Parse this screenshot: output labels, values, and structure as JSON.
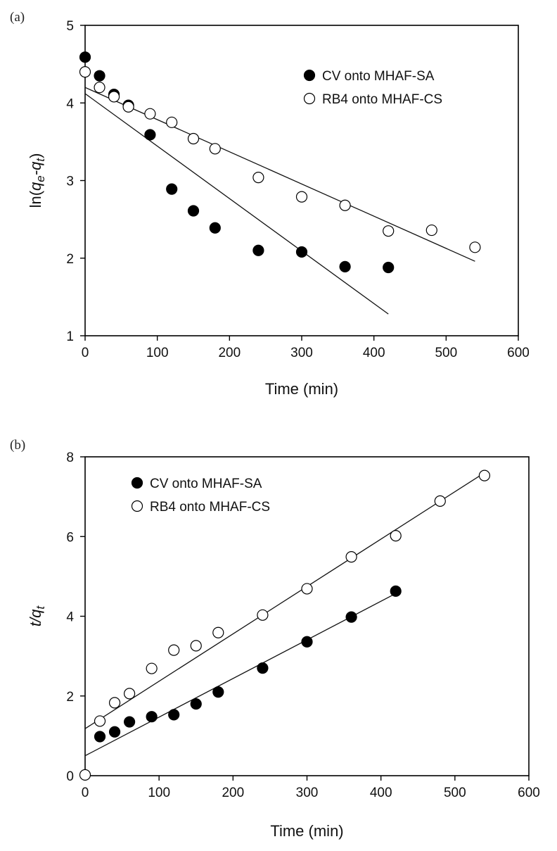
{
  "figure": {
    "panel_a_label": "(a)",
    "panel_b_label": "(b)"
  },
  "chart_data": [
    {
      "type": "scatter",
      "panel": "(a)",
      "xlabel": "Time (min)",
      "ylabel_parts": [
        "ln(",
        "q",
        "e",
        "-",
        "q",
        "t",
        ")"
      ],
      "xlim": [
        0,
        600
      ],
      "ylim": [
        1,
        5
      ],
      "xticks": [
        0,
        100,
        200,
        300,
        400,
        500,
        600
      ],
      "yticks": [
        1,
        2,
        3,
        4,
        5
      ],
      "legend_position": "top-right",
      "series": [
        {
          "name": "CV onto MHAF-SA",
          "marker": "filled-circle",
          "color": "#000000",
          "x": [
            0,
            20,
            40,
            60,
            90,
            120,
            150,
            180,
            240,
            300,
            360,
            420
          ],
          "y": [
            4.59,
            4.35,
            4.11,
            3.97,
            3.59,
            2.89,
            2.61,
            2.39,
            2.1,
            2.08,
            1.89,
            1.88
          ],
          "fit": {
            "x": [
              0,
              420
            ],
            "y": [
              4.12,
              1.28
            ]
          }
        },
        {
          "name": "RB4 onto MHAF-CS",
          "marker": "open-circle",
          "color": "#000000",
          "x": [
            0,
            20,
            40,
            60,
            90,
            120,
            150,
            180,
            240,
            300,
            360,
            420,
            480,
            540
          ],
          "y": [
            4.4,
            4.2,
            4.08,
            3.95,
            3.86,
            3.75,
            3.54,
            3.41,
            3.04,
            2.79,
            2.68,
            2.35,
            2.36,
            2.14
          ],
          "fit": {
            "x": [
              0,
              540
            ],
            "y": [
              4.2,
              1.96
            ]
          }
        }
      ]
    },
    {
      "type": "scatter",
      "panel": "(b)",
      "xlabel": "Time (min)",
      "ylabel_parts": [
        "t",
        "/",
        "q",
        "t"
      ],
      "xlim": [
        0,
        600
      ],
      "ylim": [
        0,
        8
      ],
      "xticks": [
        0,
        100,
        200,
        300,
        400,
        500,
        600
      ],
      "yticks": [
        0,
        2,
        4,
        6,
        8
      ],
      "legend_position": "top-left",
      "series": [
        {
          "name": "CV onto MHAF-SA",
          "marker": "filled-circle",
          "color": "#000000",
          "x": [
            20,
            40,
            60,
            90,
            120,
            150,
            180,
            240,
            300,
            360,
            420
          ],
          "y": [
            0.98,
            1.1,
            1.35,
            1.48,
            1.53,
            1.8,
            2.1,
            2.7,
            3.36,
            3.98,
            4.63
          ],
          "fit": {
            "x": [
              0,
              420
            ],
            "y": [
              0.5,
              4.57
            ]
          }
        },
        {
          "name": "RB4 onto MHAF-CS",
          "marker": "open-circle",
          "color": "#000000",
          "x": [
            0,
            20,
            40,
            60,
            90,
            120,
            150,
            180,
            240,
            300,
            360,
            420,
            480,
            540
          ],
          "y": [
            0.02,
            1.37,
            1.83,
            2.06,
            2.69,
            3.15,
            3.26,
            3.59,
            4.03,
            4.69,
            5.49,
            6.02,
            6.89,
            7.53
          ],
          "fit": {
            "x": [
              0,
              540
            ],
            "y": [
              1.18,
              7.6
            ]
          }
        }
      ]
    }
  ]
}
